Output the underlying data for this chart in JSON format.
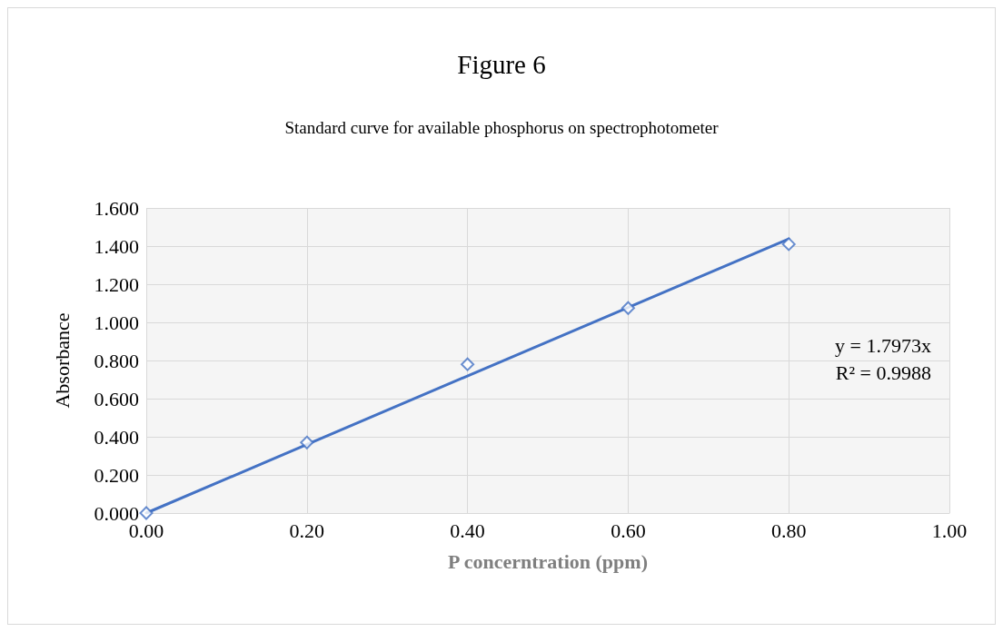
{
  "chart_data": {
    "type": "scatter",
    "title": "Figure 6",
    "subtitle": "Standard curve for available phosphorus on spectrophotometer",
    "xlabel": "P concerntration (ppm)",
    "ylabel": "Absorbance",
    "x": [
      0,
      0.2,
      0.4,
      0.6,
      0.8
    ],
    "series": [
      {
        "color": "#4472c4",
        "marker": "diamond",
        "values": [
          0,
          0.37,
          0.78,
          1.075,
          1.41
        ]
      },
      {
        "type": "line",
        "color": "#4472c4",
        "marker": "none",
        "line_style": "solid",
        "x": [
          0,
          0.8
        ],
        "values": [
          0,
          1.438
        ]
      }
    ],
    "xlim": [
      0,
      1
    ],
    "xticks": [
      {
        "value": 0,
        "label": "0.00"
      },
      {
        "value": 0.2,
        "label": "0.20"
      },
      {
        "value": 0.4,
        "label": "0.40"
      },
      {
        "value": 0.6,
        "label": "0.60"
      },
      {
        "value": 0.8,
        "label": "0.80"
      },
      {
        "value": 1,
        "label": "1.00"
      }
    ],
    "ylim": [
      0,
      1.6
    ],
    "yticks": [
      {
        "value": 0,
        "label": "0.000"
      },
      {
        "value": 0.2,
        "label": "0.200"
      },
      {
        "value": 0.4,
        "label": "0.400"
      },
      {
        "value": 0.6,
        "label": "0.600"
      },
      {
        "value": 0.8,
        "label": "0.800"
      },
      {
        "value": 1,
        "label": "1.000"
      },
      {
        "value": 1.2,
        "label": "1.200"
      },
      {
        "value": 1.4,
        "label": "1.400"
      },
      {
        "value": 1.6,
        "label": "1.600"
      }
    ],
    "grid": true,
    "annotations": [
      "y = 1.7973x",
      "R² = 0.9988"
    ]
  }
}
